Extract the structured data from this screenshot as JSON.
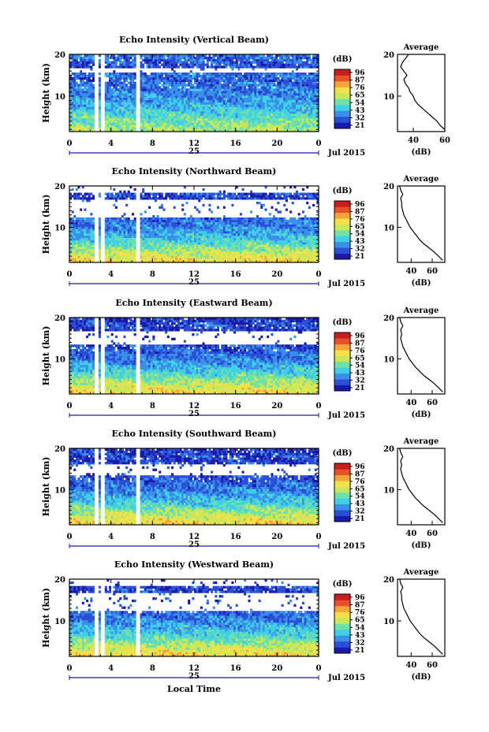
{
  "figure": {
    "xlabel": "Local Time",
    "date_label": "Jul 2015",
    "day_label": "25",
    "ylabel": "Height (km)",
    "colorbar_unit": "(dB)",
    "colorbar_ticks": [
      "96",
      "87",
      "76",
      "65",
      "54",
      "43",
      "32",
      "21"
    ],
    "x_ticks": [
      "0",
      "4",
      "8",
      "12",
      "16",
      "20",
      "0"
    ],
    "y_ticks": [
      "20",
      "10"
    ],
    "profile_title": "Average",
    "profile_xlabel": "(dB)"
  },
  "colorscale": [
    "#1a1aa8",
    "#2a4fd6",
    "#3a8fe8",
    "#3fd0e8",
    "#6fe0a8",
    "#c8e85a",
    "#f4e04a",
    "#f4a43a",
    "#e8502a",
    "#c81e1e"
  ],
  "chart_data": [
    {
      "type": "heatmap",
      "title": "Echo Intensity (Vertical Beam)",
      "xlabel": "Local Time",
      "ylabel": "Height (km)",
      "xlim": [
        0,
        24
      ],
      "ylim": [
        1.5,
        20
      ],
      "clim": [
        21,
        96
      ],
      "colorbar_label": "(dB)",
      "data_gaps_hours": [
        [
          2.5,
          2.9
        ],
        [
          3.1,
          3.4
        ],
        [
          6.5,
          6.8
        ]
      ],
      "blank_height_bands_km": [
        [
          15.6,
          16.6
        ]
      ],
      "profile": {
        "title": "Average",
        "xlabel": "(dB)",
        "xticks": [
          "40",
          "60"
        ],
        "xlim": [
          30,
          60
        ],
        "height_km": [
          2,
          3,
          4,
          5,
          6,
          7,
          8,
          9,
          10,
          11,
          12,
          13,
          14,
          15,
          16,
          17,
          18,
          19,
          20
        ],
        "value_db": [
          60,
          57,
          55,
          52,
          49,
          46,
          43,
          41,
          40,
          38,
          37,
          35,
          34,
          36,
          34,
          32,
          33,
          35,
          37
        ]
      }
    },
    {
      "type": "heatmap",
      "title": "Echo Intensity (Northward Beam)",
      "xlabel": "Local Time",
      "ylabel": "Height (km)",
      "xlim": [
        0,
        24
      ],
      "ylim": [
        1.5,
        20
      ],
      "clim": [
        21,
        96
      ],
      "colorbar_label": "(dB)",
      "data_gaps_hours": [
        [
          2.5,
          2.9
        ],
        [
          3.1,
          3.4
        ],
        [
          6.5,
          6.8
        ]
      ],
      "blank_height_bands_km": [
        [
          12.5,
          16.5
        ],
        [
          18.5,
          20
        ]
      ],
      "profile": {
        "title": "Average",
        "xlabel": "(dB)",
        "xticks": [
          "40",
          "60"
        ],
        "xlim": [
          27,
          72
        ],
        "height_km": [
          2,
          3,
          4,
          5,
          6,
          7,
          8,
          9,
          10,
          11,
          12,
          13,
          14,
          15,
          16,
          17,
          18,
          19,
          20
        ],
        "value_db": [
          70,
          66,
          62,
          57,
          52,
          48,
          45,
          42,
          39,
          37,
          35,
          33,
          32,
          31,
          31,
          30,
          32,
          30,
          29
        ]
      }
    },
    {
      "type": "heatmap",
      "title": "Echo Intensity (Eastward Beam)",
      "xlabel": "Local Time",
      "ylabel": "Height (km)",
      "xlim": [
        0,
        24
      ],
      "ylim": [
        1.5,
        20
      ],
      "clim": [
        21,
        96
      ],
      "colorbar_label": "(dB)",
      "data_gaps_hours": [
        [
          2.5,
          2.9
        ],
        [
          3.1,
          3.4
        ],
        [
          6.5,
          6.8
        ]
      ],
      "blank_height_bands_km": [
        [
          13.5,
          16.5
        ]
      ],
      "profile": {
        "title": "Average",
        "xlabel": "(dB)",
        "xticks": [
          "40",
          "60"
        ],
        "xlim": [
          27,
          72
        ],
        "height_km": [
          2,
          3,
          4,
          5,
          6,
          7,
          8,
          9,
          10,
          11,
          12,
          13,
          14,
          15,
          16,
          17,
          18,
          19,
          20
        ],
        "value_db": [
          70,
          66,
          62,
          57,
          52,
          48,
          44,
          41,
          38,
          36,
          34,
          32,
          31,
          30,
          31,
          30,
          32,
          30,
          29
        ]
      }
    },
    {
      "type": "heatmap",
      "title": "Echo Intensity (Southward Beam)",
      "xlabel": "Local Time",
      "ylabel": "Height (km)",
      "xlim": [
        0,
        24
      ],
      "ylim": [
        1.5,
        20
      ],
      "clim": [
        21,
        96
      ],
      "colorbar_label": "(dB)",
      "data_gaps_hours": [
        [
          2.5,
          2.9
        ],
        [
          3.1,
          3.4
        ],
        [
          6.5,
          6.8
        ]
      ],
      "blank_height_bands_km": [
        [
          13.5,
          16.0
        ]
      ],
      "profile": {
        "title": "Average",
        "xlabel": "(dB)",
        "xticks": [
          "40",
          "60"
        ],
        "xlim": [
          27,
          72
        ],
        "height_km": [
          2,
          3,
          4,
          5,
          6,
          7,
          8,
          9,
          10,
          11,
          12,
          13,
          14,
          15,
          16,
          17,
          18,
          19,
          20
        ],
        "value_db": [
          70,
          66,
          62,
          57,
          52,
          48,
          44,
          41,
          38,
          36,
          34,
          32,
          31,
          30,
          31,
          30,
          32,
          30,
          29
        ]
      }
    },
    {
      "type": "heatmap",
      "title": "Echo Intensity (Westward Beam)",
      "xlabel": "Local Time",
      "ylabel": "Height (km)",
      "xlim": [
        0,
        24
      ],
      "ylim": [
        1.5,
        20
      ],
      "clim": [
        21,
        96
      ],
      "colorbar_label": "(dB)",
      "data_gaps_hours": [
        [
          2.5,
          2.9
        ],
        [
          3.1,
          3.4
        ],
        [
          6.5,
          6.8
        ]
      ],
      "blank_height_bands_km": [
        [
          12.5,
          16.5
        ],
        [
          18.5,
          20
        ]
      ],
      "profile": {
        "title": "Average",
        "xlabel": "(dB)",
        "xticks": [
          "40",
          "60"
        ],
        "xlim": [
          27,
          72
        ],
        "height_km": [
          2,
          3,
          4,
          5,
          6,
          7,
          8,
          9,
          10,
          11,
          12,
          13,
          14,
          15,
          16,
          17,
          18,
          19,
          20
        ],
        "value_db": [
          70,
          66,
          62,
          57,
          52,
          48,
          45,
          42,
          39,
          37,
          35,
          33,
          32,
          31,
          31,
          30,
          32,
          30,
          29
        ]
      }
    }
  ]
}
